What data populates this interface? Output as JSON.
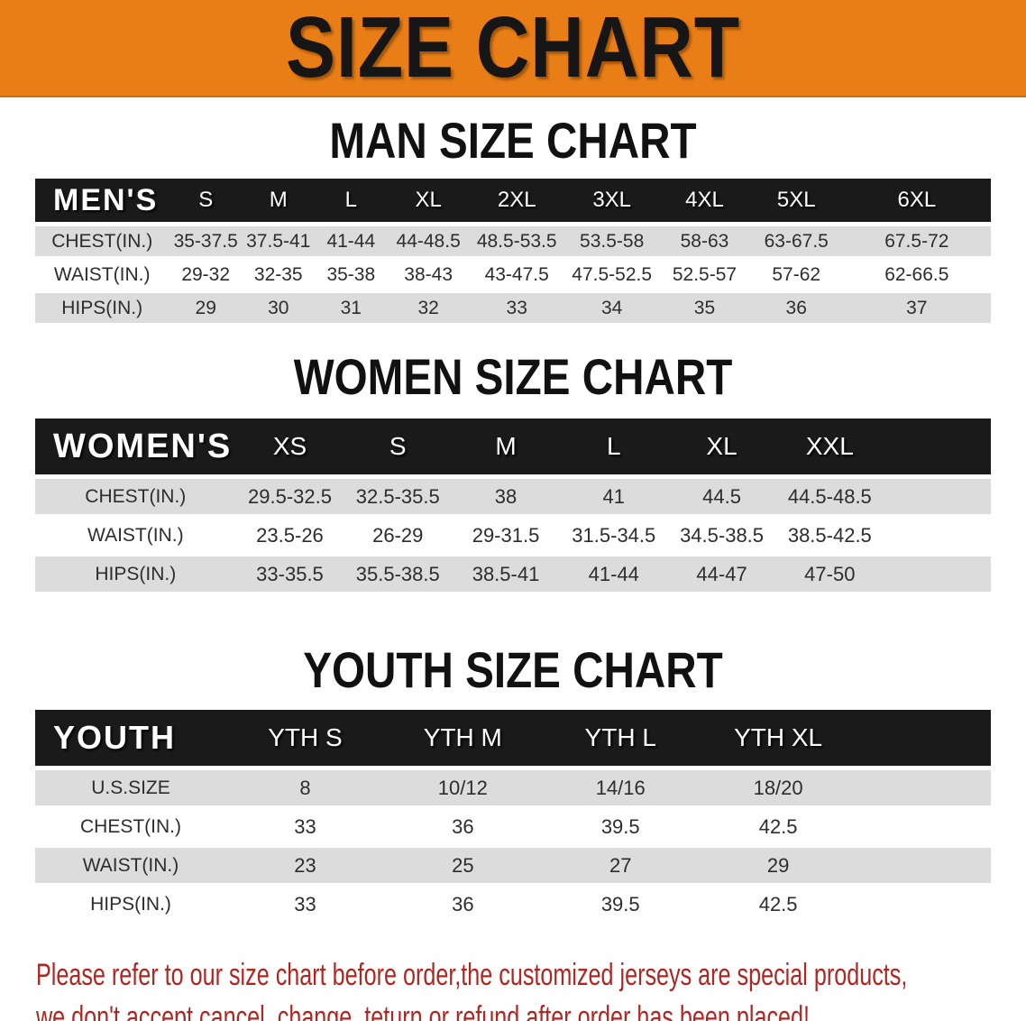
{
  "banner": {
    "title": "SIZE CHART",
    "bg_color": "#E87E15"
  },
  "sections": {
    "man": {
      "heading": "MAN SIZE CHART",
      "table": {
        "header_label": "MEN'S",
        "header_bg": "#1A1A1A",
        "columns": [
          "S",
          "M",
          "L",
          "XL",
          "2XL",
          "3XL",
          "4XL",
          "5XL",
          "6XL"
        ],
        "rows": [
          {
            "label": "CHEST(IN.)",
            "values": [
              "35-37.5",
              "37.5-41",
              "41-44",
              "44-48.5",
              "48.5-53.5",
              "53.5-58",
              "58-63",
              "63-67.5",
              "67.5-72"
            ]
          },
          {
            "label": "WAIST(IN.)",
            "values": [
              "29-32",
              "32-35",
              "35-38",
              "38-43",
              "43-47.5",
              "47.5-52.5",
              "52.5-57",
              "57-62",
              "62-66.5"
            ]
          },
          {
            "label": "HIPS(IN.)",
            "values": [
              "29",
              "30",
              "31",
              "32",
              "33",
              "34",
              "35",
              "36",
              "37"
            ]
          }
        ]
      }
    },
    "women": {
      "heading": "WOMEN SIZE CHART",
      "table": {
        "header_label": "WOMEN'S",
        "header_bg": "#1A1A1A",
        "columns": [
          "XS",
          "S",
          "M",
          "L",
          "XL",
          "XXL"
        ],
        "rows": [
          {
            "label": "CHEST(IN.)",
            "values": [
              "29.5-32.5",
              "32.5-35.5",
              "38",
              "41",
              "44.5",
              "44.5-48.5"
            ]
          },
          {
            "label": "WAIST(IN.)",
            "values": [
              "23.5-26",
              "26-29",
              "29-31.5",
              "31.5-34.5",
              "34.5-38.5",
              "38.5-42.5"
            ]
          },
          {
            "label": "HIPS(IN.)",
            "values": [
              "33-35.5",
              "35.5-38.5",
              "38.5-41",
              "41-44",
              "44-47",
              "47-50"
            ]
          }
        ]
      }
    },
    "youth": {
      "heading": "YOUTH SIZE CHART",
      "table": {
        "header_label": "YOUTH",
        "header_bg": "#1A1A1A",
        "columns": [
          "YTH S",
          "YTH M",
          "YTH L",
          "YTH XL"
        ],
        "rows": [
          {
            "label": "U.S.SIZE",
            "values": [
              "8",
              "10/12",
              "14/16",
              "18/20"
            ]
          },
          {
            "label": "CHEST(IN.)",
            "values": [
              "33",
              "36",
              "39.5",
              "42.5"
            ]
          },
          {
            "label": "WAIST(IN.)",
            "values": [
              "23",
              "25",
              "27",
              "29"
            ]
          },
          {
            "label": "HIPS(IN.)",
            "values": [
              "33",
              "36",
              "39.5",
              "42.5"
            ]
          }
        ]
      }
    }
  },
  "row_colors": {
    "shaded": "#DCDCDC",
    "plain": "#FFFFFF"
  },
  "footer_note": {
    "color": "#B02722",
    "line1": "Please refer to our size chart before order,the customized jerseys are special products,",
    "line2": "we don't accept cancel, change, teturn or refund after order has been placed!"
  }
}
